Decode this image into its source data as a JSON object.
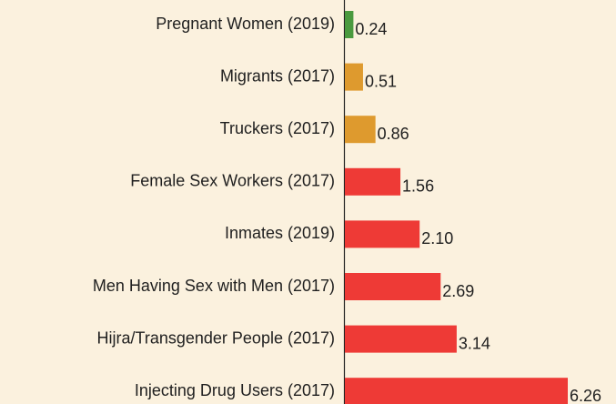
{
  "chart_data": {
    "type": "bar",
    "orientation": "horizontal",
    "categories": [
      "Pregnant Women (2019)",
      "Migrants (2017)",
      "Truckers (2017)",
      "Female Sex Workers (2017)",
      "Inmates (2019)",
      "Men Having Sex with Men (2017)",
      "Hijra/Transgender People (2017)",
      "Injecting Drug Users (2017)"
    ],
    "values": [
      0.24,
      0.51,
      0.86,
      1.56,
      2.1,
      2.69,
      3.14,
      6.26
    ],
    "value_labels": [
      "0.24",
      "0.51",
      "0.86",
      "1.56",
      "2.10",
      "2.69",
      "3.14",
      "6.26"
    ],
    "colors": [
      "#4a9a3f",
      "#de9a2e",
      "#de9a2e",
      "#ee3a36",
      "#ee3a36",
      "#ee3a36",
      "#ee3a36",
      "#ee3a36"
    ]
  }
}
